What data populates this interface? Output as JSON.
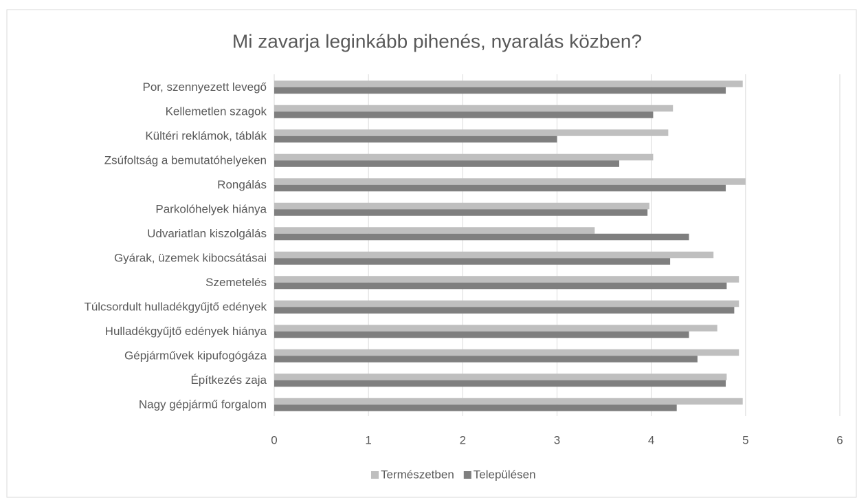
{
  "chart_data": {
    "type": "hbar",
    "title": "Mi zavarja leginkább pihenés, nyaralás közben?",
    "categories": [
      "Por, szennyezett levegő",
      "Kellemetlen szagok",
      "Kültéri reklámok, táblák",
      "Zsúfoltság a bemutatóhelyeken",
      "Rongálás",
      "Parkolóhelyek hiánya",
      "Udvariatlan kiszolgálás",
      "Gyárak, üzemek kibocsátásai",
      "Szemetelés",
      "Túlcsordult hulladékgyűjtő edények",
      "Hulladékgyűjtő edények hiánya",
      "Gépjárművek kipufogógáza",
      "Építkezés zaja",
      "Nagy gépjármű forgalom"
    ],
    "series": [
      {
        "name": "Természetben",
        "color": "#bfbfbf",
        "values": [
          4.97,
          4.23,
          4.18,
          4.02,
          5.0,
          3.98,
          3.4,
          4.66,
          4.93,
          4.93,
          4.7,
          4.93,
          4.8,
          4.97
        ]
      },
      {
        "name": "Településen",
        "color": "#7f7f7f",
        "values": [
          4.79,
          4.02,
          3.0,
          3.66,
          4.79,
          3.96,
          4.4,
          4.2,
          4.8,
          4.88,
          4.4,
          4.49,
          4.79,
          4.27
        ]
      }
    ],
    "xlim": [
      0,
      6
    ],
    "xticks": [
      0,
      1,
      2,
      3,
      4,
      5,
      6
    ],
    "grid": true,
    "legend": "bottom"
  }
}
